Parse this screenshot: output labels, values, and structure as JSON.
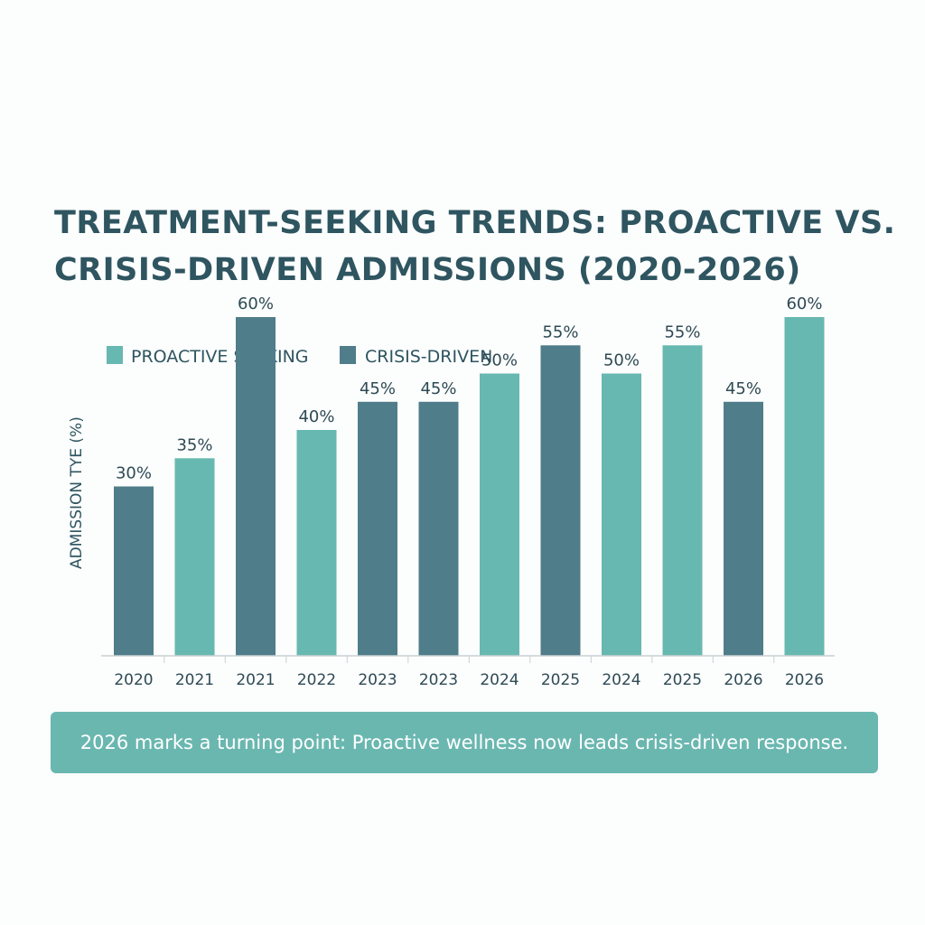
{
  "colors": {
    "proactive": "#67b8b0",
    "crisis": "#4f7d89",
    "text": "#2e5560",
    "callout_bg": "#6ab7b0",
    "axis": "#c8d2d4"
  },
  "chart_data": {
    "type": "bar",
    "title_lines": [
      "TREATMENT-SEEKING TRENDS: PROACTIVE VS.",
      "CRISIS-DRIVEN ADMISSIONS (2020-2026)"
    ],
    "xlabel": "",
    "ylabel": "ADMISSION TYE (%)",
    "ylim": [
      0,
      60
    ],
    "grid": false,
    "legend_position": "top-left",
    "legend": [
      {
        "name": "PROACTIVE SEEKING",
        "color_key": "proactive"
      },
      {
        "name": "CRISIS-DRIVEN",
        "color_key": "crisis"
      }
    ],
    "bars": [
      {
        "category": "2020",
        "value": 30,
        "label": "30%",
        "series": "crisis"
      },
      {
        "category": "2021",
        "value": 35,
        "label": "35%",
        "series": "proactive"
      },
      {
        "category": "2021",
        "value": 60,
        "label": "60%",
        "series": "crisis"
      },
      {
        "category": "2022",
        "value": 40,
        "label": "40%",
        "series": "proactive"
      },
      {
        "category": "2023",
        "value": 45,
        "label": "45%",
        "series": "crisis"
      },
      {
        "category": "2023",
        "value": 45,
        "label": "45%",
        "series": "crisis"
      },
      {
        "category": "2024",
        "value": 50,
        "label": "50%",
        "series": "proactive"
      },
      {
        "category": "2025",
        "value": 55,
        "label": "55%",
        "series": "crisis"
      },
      {
        "category": "2024",
        "value": 50,
        "label": "50%",
        "series": "proactive"
      },
      {
        "category": "2025",
        "value": 55,
        "label": "55%",
        "series": "proactive"
      },
      {
        "category": "2026",
        "value": 45,
        "label": "45%",
        "series": "crisis"
      },
      {
        "category": "2026",
        "value": 60,
        "label": "60%",
        "series": "proactive"
      }
    ]
  },
  "callout": {
    "text": "2026 marks a turning point: Proactive wellness now leads crisis-driven response."
  }
}
